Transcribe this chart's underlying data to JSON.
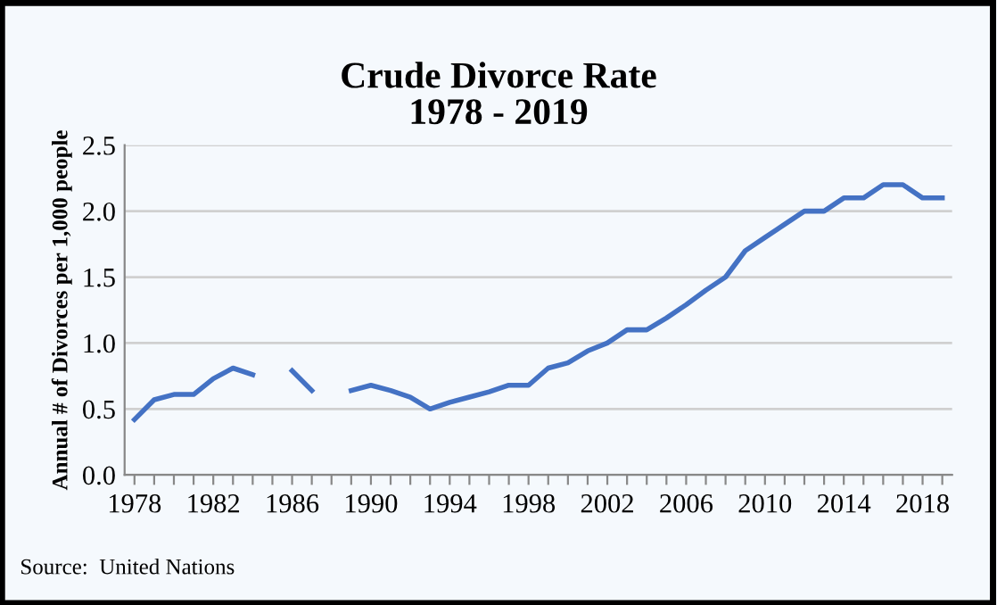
{
  "chart_data": {
    "type": "line",
    "title": "Crude Divorce Rate\n1978 - 2019",
    "ylabel": "Annual # of Divorces per 1,000 people",
    "categories": [
      "1978",
      null,
      null,
      null,
      "1982",
      null,
      null,
      null,
      "1986",
      null,
      null,
      null,
      "1990",
      null,
      null,
      null,
      "1994",
      null,
      null,
      null,
      "1998",
      null,
      null,
      null,
      "2002",
      null,
      null,
      null,
      "2006",
      null,
      null,
      null,
      "2010",
      null,
      null,
      null,
      "2014",
      null,
      null,
      null,
      "2018",
      null
    ],
    "series": [
      {
        "color": "#4472c4",
        "values": [
          0.42,
          0.57,
          0.61,
          0.61,
          0.73,
          0.81,
          0.76,
          null,
          0.79,
          0.64,
          null,
          0.64,
          0.68,
          0.64,
          0.59,
          0.5,
          0.55,
          0.59,
          0.63,
          0.68,
          0.68,
          0.81,
          0.85,
          0.94,
          1.0,
          1.1,
          1.1,
          1.19,
          1.29,
          1.4,
          1.5,
          1.7,
          1.8,
          1.9,
          2.0,
          2.0,
          2.1,
          2.1,
          2.2,
          2.2,
          2.1,
          2.1
        ]
      }
    ],
    "ylim": [
      0,
      2.5
    ],
    "yticks": [
      {
        "value": 0,
        "label": "0.0"
      },
      {
        "value": 0.5,
        "label": "0.5"
      },
      {
        "value": 1,
        "label": "1.0"
      },
      {
        "value": 1.5,
        "label": "1.5"
      },
      {
        "value": 2,
        "label": "2.0"
      },
      {
        "value": 2.5,
        "label": "2.5"
      }
    ],
    "grid": "y",
    "legend": false,
    "marker": "none",
    "line_style": "solid",
    "annotations": [
      "Source:  United Nations"
    ]
  }
}
